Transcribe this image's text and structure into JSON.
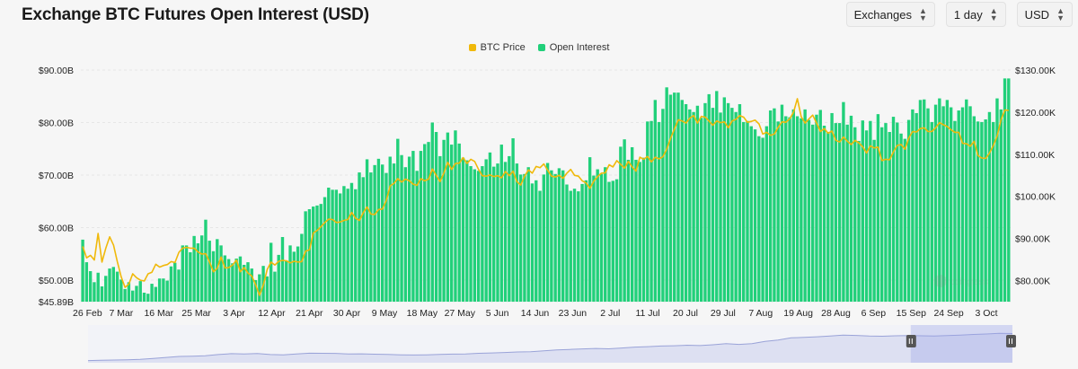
{
  "header": {
    "title": "Exchange BTC Futures Open Interest (USD)",
    "selects": [
      {
        "id": "exchanges",
        "label": "Exchanges"
      },
      {
        "id": "interval",
        "label": "1 day"
      },
      {
        "id": "currency",
        "label": "USD"
      }
    ]
  },
  "chart_data": {
    "type": "bar",
    "legend": [
      {
        "name": "BTC Price",
        "color": "#f0b90b"
      },
      {
        "name": "Open Interest",
        "color": "#21d07a"
      }
    ],
    "x_labels": [
      "26 Feb",
      "7 Mar",
      "16 Mar",
      "25 Mar",
      "3 Apr",
      "12 Apr",
      "21 Apr",
      "30 Apr",
      "9 May",
      "18 May",
      "27 May",
      "5 Jun",
      "14 Jun",
      "23 Jun",
      "2 Jul",
      "11 Jul",
      "20 Jul",
      "29 Jul",
      "7 Aug",
      "19 Aug",
      "28 Aug",
      "6 Sep",
      "15 Sep",
      "24 Sep",
      "3 Oct"
    ],
    "y_left": {
      "ticks": [
        "$45.89B",
        "$50.00B",
        "$60.00B",
        "$70.00B",
        "$80.00B",
        "$90.00B"
      ],
      "min": 45.89,
      "max": 90
    },
    "y_right": {
      "ticks": [
        "$80.00K",
        "$90.00K",
        "$100.00K",
        "$110.00K",
        "$120.00K",
        "$130.00K"
      ],
      "min": 75,
      "max": 130
    },
    "series": [
      {
        "name": "Open Interest",
        "unit": "B USD",
        "values": [
          57.7,
          53.4,
          51.7,
          49.6,
          51.4,
          48.8,
          50.8,
          52.2,
          52.5,
          51.6,
          50.1,
          48.3,
          49.6,
          48.0,
          48.9,
          49.8,
          47.6,
          47.4,
          49.3,
          48.7,
          50.3,
          50.3,
          49.9,
          52.6,
          53.3,
          52.0,
          56.6,
          56.6,
          55.3,
          58.4,
          57.0,
          58.5,
          61.5,
          57.5,
          55.5,
          57.8,
          56.6,
          54.7,
          54.0,
          53.2,
          54.1,
          54.5,
          52.9,
          53.4,
          52.2,
          50.0,
          51.1,
          52.7,
          50.7,
          57.1,
          51.6,
          54.8,
          58.2,
          53.7,
          56.6,
          55.4,
          56.4,
          58.8,
          63.1,
          63.5,
          64.0,
          64.2,
          64.5,
          65.8,
          67.6,
          67.2,
          67.2,
          66.5,
          67.9,
          67.4,
          68.5,
          67.3,
          70.5,
          69.6,
          73.0,
          70.5,
          71.9,
          73.1,
          72.0,
          70.4,
          73.5,
          72.2,
          76.9,
          73.8,
          71.5,
          73.5,
          74.6,
          70.8,
          74.6,
          75.9,
          76.3,
          80.0,
          78.2,
          73.6,
          76.7,
          78.1,
          75.8,
          78.5,
          76.0,
          73.3,
          72.8,
          71.7,
          71.1,
          70.8,
          71.7,
          73.0,
          74.3,
          71.6,
          72.2,
          75.8,
          72.5,
          73.6,
          77.0,
          72.2,
          70.1,
          70.2,
          71.5,
          68.4,
          69.0,
          67.0,
          70.1,
          72.3,
          70.9,
          70.2,
          71.3,
          70.9,
          68.2,
          67.0,
          67.4,
          66.9,
          68.3,
          69.0,
          73.4,
          69.9,
          71.1,
          70.2,
          71.5,
          68.7,
          68.9,
          69.2,
          75.4,
          76.8,
          72.9,
          75.3,
          72.9,
          72.5,
          73.3,
          80.2,
          80.3,
          84.3,
          80.1,
          82.6,
          86.7,
          85.3,
          85.7,
          85.7,
          84.3,
          83.5,
          82.5,
          82.0,
          83.2,
          80.9,
          83.7,
          85.4,
          82.8,
          86.0,
          81.9,
          84.8,
          83.7,
          82.8,
          82.0,
          83.5,
          80.1,
          80.3,
          79.3,
          78.7,
          77.4,
          77.1,
          79.3,
          82.3,
          82.7,
          80.2,
          83.4,
          81.2,
          81.0,
          82.5,
          81.2,
          80.8,
          82.5,
          80.5,
          79.6,
          81.5,
          82.4,
          79.4,
          78.2,
          81.8,
          79.9,
          79.9,
          83.9,
          79.6,
          81.3,
          79.1,
          76.5,
          80.4,
          78.5,
          80.3,
          76.7,
          81.6,
          79.1,
          79.9,
          78.2,
          81.1,
          80.0,
          77.9,
          76.9,
          80.5,
          82.5,
          81.8,
          84.3,
          84.4,
          82.7,
          80.1,
          83.4,
          84.6,
          83.1,
          84.3,
          82.9,
          80.3,
          82.3,
          82.9,
          84.4,
          83.1,
          81.2,
          80.2,
          80.1,
          80.6,
          82.0,
          80.1,
          84.6,
          82.5,
          88.4,
          88.4
        ],
        "color": "#21d07a"
      },
      {
        "name": "BTC Price",
        "unit": "K USD",
        "values": [
          88.1,
          85.4,
          86.0,
          84.9,
          91.2,
          84.4,
          87.7,
          90.4,
          88.4,
          84.5,
          80.9,
          78.4,
          79.2,
          81.6,
          80.7,
          80.1,
          79.9,
          81.6,
          82.0,
          83.9,
          83.2,
          83.6,
          83.8,
          84.5,
          84.3,
          86.7,
          87.7,
          87.9,
          87.7,
          87.7,
          86.8,
          86.3,
          86.4,
          84.4,
          82.1,
          82.9,
          85.6,
          83.0,
          83.1,
          83.7,
          84.9,
          82.1,
          83.1,
          81.8,
          81.1,
          79.0,
          76.5,
          79.0,
          82.6,
          84.4,
          83.7,
          84.6,
          84.8,
          84.7,
          84.2,
          84.6,
          84.4,
          84.5,
          87.0,
          87.3,
          91.3,
          91.9,
          92.8,
          93.8,
          94.6,
          94.5,
          93.8,
          93.9,
          94.3,
          94.5,
          96.2,
          94.8,
          94.3,
          96.1,
          97.5,
          95.8,
          95.7,
          96.9,
          97.0,
          99.0,
          102.5,
          103.1,
          104.2,
          103.4,
          104.1,
          103.7,
          102.9,
          102.6,
          104.2,
          103.7,
          104.1,
          106.5,
          105.0,
          103.5,
          105.6,
          108.1,
          106.4,
          107.8,
          107.9,
          109.2,
          107.8,
          108.8,
          108.3,
          106.4,
          104.9,
          104.8,
          105.1,
          104.7,
          104.9,
          104.4,
          105.9,
          104.9,
          106.0,
          103.5,
          102.7,
          104.8,
          106.3,
          105.5,
          107.1,
          106.8,
          107.7,
          106.2,
          104.8,
          104.6,
          105.0,
          104.3,
          105.5,
          106.4,
          105.0,
          104.8,
          103.7,
          103.2,
          101.9,
          103.6,
          104.7,
          105.5,
          105.6,
          107.5,
          107.0,
          108.5,
          107.6,
          106.7,
          108.3,
          107.0,
          106.0,
          109.3,
          108.8,
          109.5,
          108.2,
          109.3,
          108.9,
          109.4,
          111.2,
          113.8,
          116.0,
          118.2,
          117.9,
          117.4,
          118.6,
          119.2,
          117.4,
          119.0,
          118.8,
          117.9,
          116.9,
          117.9,
          117.5,
          117.7,
          116.3,
          117.9,
          118.3,
          119.2,
          118.8,
          117.6,
          117.8,
          118.1,
          117.2,
          114.8,
          115.2,
          114.5,
          114.8,
          116.4,
          117.7,
          117.6,
          118.4,
          120.0,
          123.2,
          118.9,
          117.4,
          118.4,
          119.3,
          117.4,
          115.4,
          116.1,
          115.0,
          115.5,
          113.3,
          112.9,
          114.1,
          113.1,
          112.3,
          113.3,
          112.7,
          111.8,
          110.3,
          112.0,
          111.5,
          111.7,
          108.5,
          108.8,
          108.7,
          110.6,
          112.1,
          112.3,
          111.2,
          113.9,
          115.4,
          115.3,
          116.1,
          116.3,
          115.4,
          115.4,
          116.3,
          117.5,
          117.0,
          116.6,
          115.8,
          115.2,
          115.2,
          112.6,
          112.5,
          111.9,
          113.1,
          109.7,
          109.1,
          109.0,
          110.3,
          112.1,
          114.3,
          118.2,
          120.5,
          120.4
        ],
        "color": "#f0b90b"
      }
    ],
    "grid": true,
    "legend_position": "top-center",
    "watermark": "coinglass",
    "overview": {
      "values": [
        3,
        3.4,
        3.7,
        3.9,
        4.6,
        5.8,
        7.3,
        8.6,
        8.9,
        9.5,
        11.2,
        12.4,
        11.9,
        12.7,
        11.2,
        10.8,
        12.1,
        13.1,
        13.0,
        12.8,
        12.0,
        12.2,
        11.7,
        11.4,
        10.9,
        10.6,
        10.9,
        11.3,
        11.8,
        12.1,
        12.9,
        13.4,
        14.1,
        14.8,
        15.2,
        16.4,
        17.6,
        18.3,
        19.0,
        19.6,
        19.1,
        20.2,
        21.5,
        22.1,
        22.9,
        23.3,
        24.0,
        23.6,
        24.6,
        26.1,
        25.1,
        26.2,
        29.2,
        31.2,
        34.1,
        34.8,
        35.6,
        36.7,
        37.8,
        37.5,
        36.6,
        36.4,
        37.0,
        37.4,
        37.0,
        36.6,
        37.4,
        38.0,
        38.8,
        39.5,
        40.3,
        40.0
      ],
      "range": [
        0.89,
        1.0
      ]
    }
  }
}
